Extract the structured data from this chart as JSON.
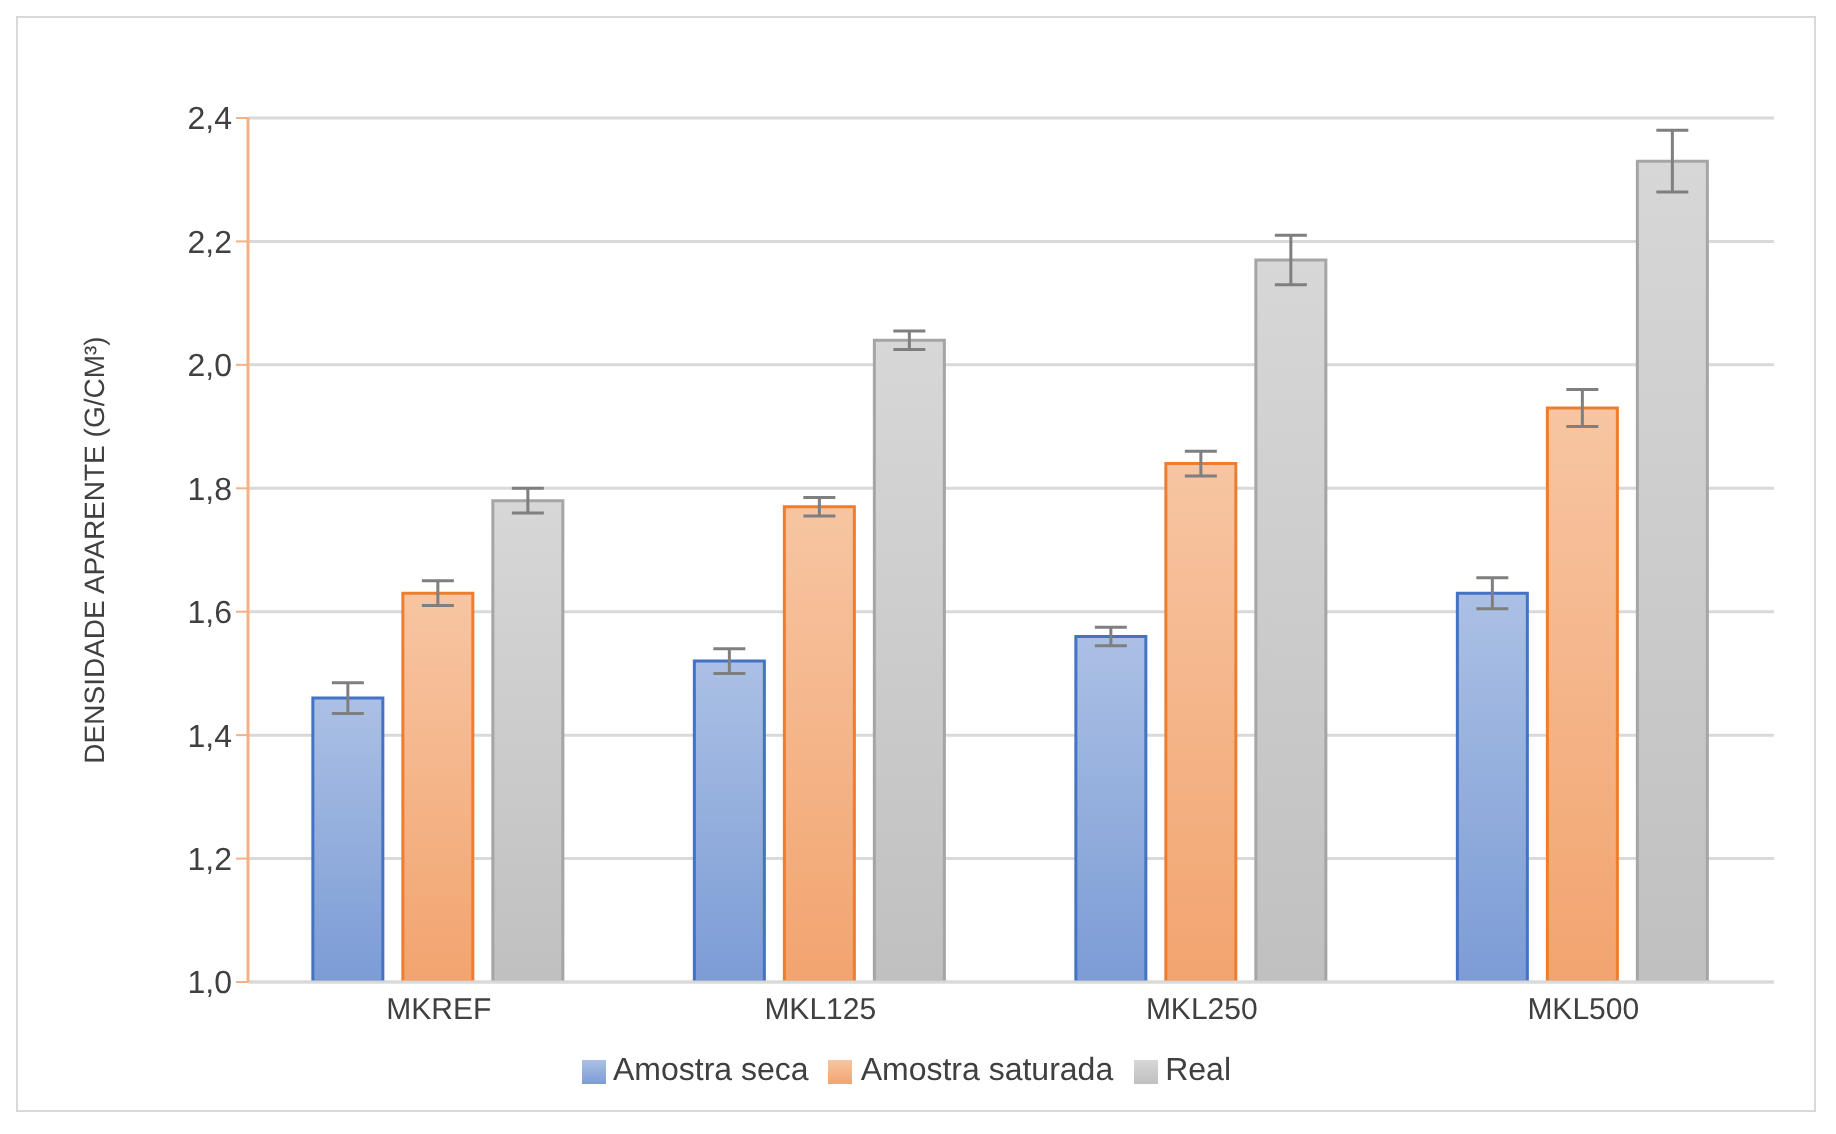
{
  "chart_data": {
    "type": "bar",
    "ylabel": "DENSIDADE APARENTE (G/CM³)",
    "categories": [
      "MKREF",
      "MKL125",
      "MKL250",
      "MKL500"
    ],
    "series": [
      {
        "name": "Amostra seca",
        "color": "#4472c4",
        "values": [
          1.46,
          1.52,
          1.56,
          1.63
        ],
        "errors": [
          0.025,
          0.02,
          0.015,
          0.025
        ]
      },
      {
        "name": "Amostra saturada",
        "color": "#ed7d31",
        "values": [
          1.63,
          1.77,
          1.84,
          1.93
        ],
        "errors": [
          0.02,
          0.015,
          0.02,
          0.03
        ]
      },
      {
        "name": "Real",
        "color": "#a5a5a5",
        "values": [
          1.78,
          2.04,
          2.17,
          2.33
        ],
        "errors": [
          0.02,
          0.015,
          0.04,
          0.05
        ]
      }
    ],
    "ylim": [
      1.0,
      2.4
    ],
    "yticks": [
      {
        "value": 1.0,
        "label": "1,0"
      },
      {
        "value": 1.2,
        "label": "1,2"
      },
      {
        "value": 1.4,
        "label": "1,4"
      },
      {
        "value": 1.6,
        "label": "1,6"
      },
      {
        "value": 1.8,
        "label": "1,8"
      },
      {
        "value": 2.0,
        "label": "2,0"
      },
      {
        "value": 2.2,
        "label": "2,2"
      },
      {
        "value": 2.4,
        "label": "2,4"
      }
    ],
    "grid": "y",
    "legend": "bottom"
  }
}
